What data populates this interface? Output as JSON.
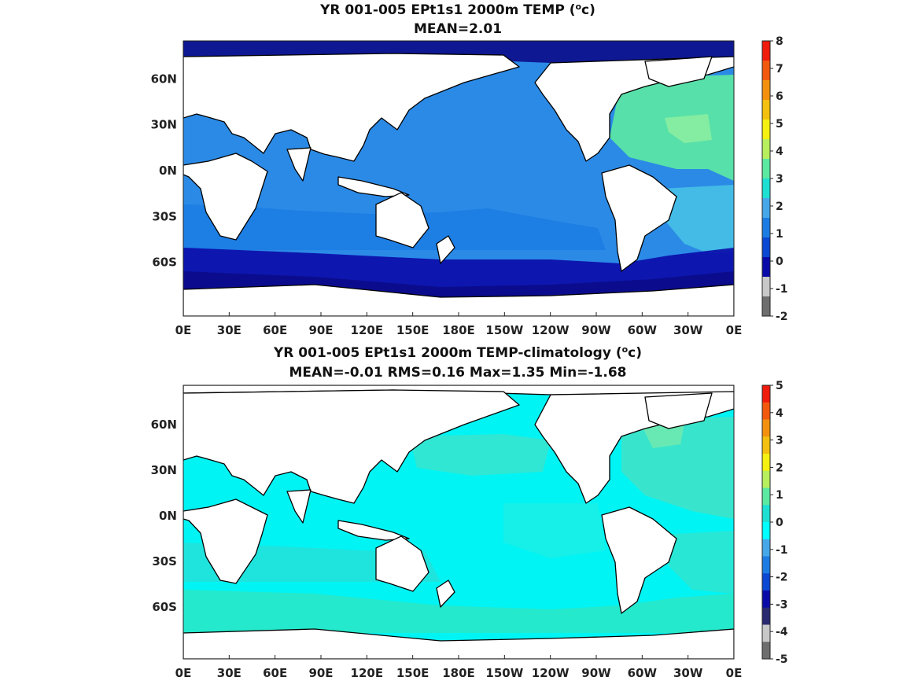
{
  "panels": [
    {
      "title_main": "YR 001-005 EPt1s1 2000m TEMP (",
      "title_unit_sup": "o",
      "title_unit_rest": "c)",
      "subtitle": "MEAN=2.01",
      "colorbar_ticks": [
        "8",
        "7",
        "6",
        "5",
        "4",
        "3",
        "2",
        "1",
        "0",
        "-1",
        "-2"
      ],
      "colorbar_colors": [
        "#f01a0d",
        "#f2590f",
        "#f3910f",
        "#f3c00f",
        "#f4f00f",
        "#b7ef5e",
        "#5ce9a2",
        "#1ee0d2",
        "#46a7e9",
        "#1c7ce3",
        "#0b48d3",
        "#0a0aa8",
        "#c8c8c8",
        "#6e6e6e"
      ],
      "ocean_color": "#2b8ae6",
      "regions": [
        {
          "name": "atlantic-north",
          "color": "#5ce9a2"
        },
        {
          "name": "southern-ocean",
          "color": "#0a0aa8"
        },
        {
          "name": "antarctic-shelf",
          "color": "#0b0b8a"
        },
        {
          "name": "arctic",
          "color": "#0b0b8a"
        },
        {
          "name": "indian-band",
          "color": "#1c7ce3"
        },
        {
          "name": "south-atlantic",
          "color": "#46c0e6"
        },
        {
          "name": "gulf-stream",
          "color": "#8aeea0"
        }
      ]
    },
    {
      "title_main": "YR 001-005 EPt1s1 2000m TEMP-climatology (",
      "title_unit_sup": "o",
      "title_unit_rest": "c)",
      "subtitle": "MEAN=-0.01   RMS=0.16   Max=1.35   Min=-1.68",
      "colorbar_ticks": [
        "5",
        "4",
        "3",
        "2",
        "1",
        "0",
        "-1",
        "-2",
        "-3",
        "-4",
        "-5"
      ],
      "colorbar_colors": [
        "#f01a0d",
        "#f2590f",
        "#f3910f",
        "#f3c00f",
        "#f4f00f",
        "#b7ef5e",
        "#5ce9a2",
        "#1ee0d2",
        "#00ffff",
        "#46a7e9",
        "#1c7ce3",
        "#0b48d3",
        "#0a0aa8",
        "#2a2a70",
        "#c8c8c8",
        "#6e6e6e"
      ],
      "ocean_color": "#00f4f4",
      "regions": [
        {
          "name": "atlantic-north",
          "color": "#3ee3c8"
        },
        {
          "name": "southern-ocean",
          "color": "#28e8c8"
        },
        {
          "name": "indian-band",
          "color": "#22e2dc"
        },
        {
          "name": "north-pacific",
          "color": "#35e6cf"
        },
        {
          "name": "east-pacific",
          "color": "#18f0e8"
        },
        {
          "name": "south-atlantic",
          "color": "#2ee6d2"
        },
        {
          "name": "gulf-stream",
          "color": "#6ee9b0"
        }
      ]
    }
  ],
  "x_ticks": [
    "0E",
    "30E",
    "60E",
    "90E",
    "120E",
    "150E",
    "180E",
    "150W",
    "120W",
    "90W",
    "60W",
    "30W",
    "0E"
  ],
  "y_ticks": [
    "60N",
    "30N",
    "0N",
    "30S",
    "60S"
  ],
  "land_color": "#ffffff",
  "coast_color": "#000000"
}
